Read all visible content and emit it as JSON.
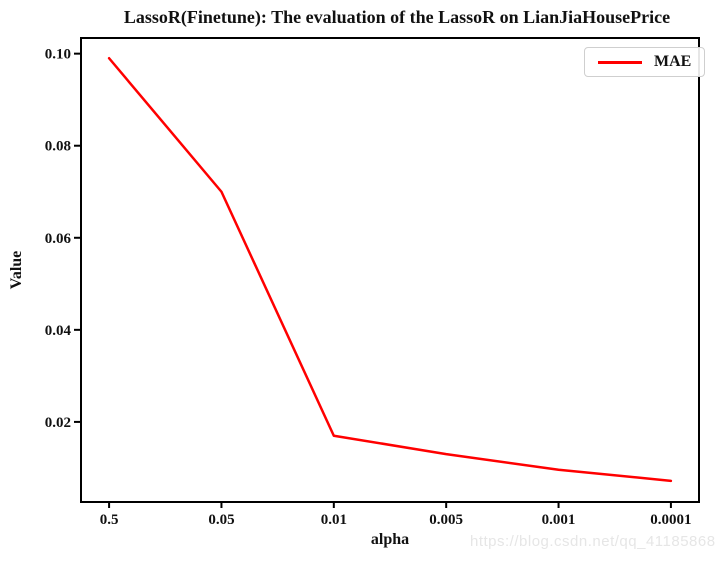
{
  "title": "LassoR(Finetune): The evaluation of the LassoR on LianJiaHousePrice",
  "watermark": "https://blog.csdn.net/qq_41185868",
  "legend": {
    "position": "upper right",
    "entries": [
      {
        "label": "MAE",
        "color": "#ff0000"
      }
    ]
  },
  "colors": {
    "line": "#ff0000",
    "axis": "#000000",
    "text": "#111111",
    "legend_border": "#cfcfcf",
    "watermark": "#e6e6e6",
    "background": "#ffffff"
  },
  "chart_data": {
    "type": "line",
    "title": "LassoR(Finetune): The evaluation of the LassoR on LianJiaHousePrice",
    "xlabel": "alpha",
    "ylabel": "Value",
    "categories": [
      "0.5",
      "0.05",
      "0.01",
      "0.005",
      "0.001",
      "0.0001"
    ],
    "series": [
      {
        "name": "MAE",
        "color": "#ff0000",
        "values": [
          0.099,
          0.07,
          0.017,
          0.013,
          0.0096,
          0.0072
        ]
      }
    ],
    "yticks": [
      0.02,
      0.04,
      0.06,
      0.08,
      0.1
    ],
    "ytick_labels": [
      "0.02",
      "0.04",
      "0.06",
      "0.08",
      "0.10"
    ],
    "ylim": [
      0.0026,
      0.1034
    ],
    "xlim_index": [
      -0.25,
      5.25
    ],
    "grid": false,
    "legend_position": "upper right",
    "line_style": "solid",
    "markers": false
  }
}
